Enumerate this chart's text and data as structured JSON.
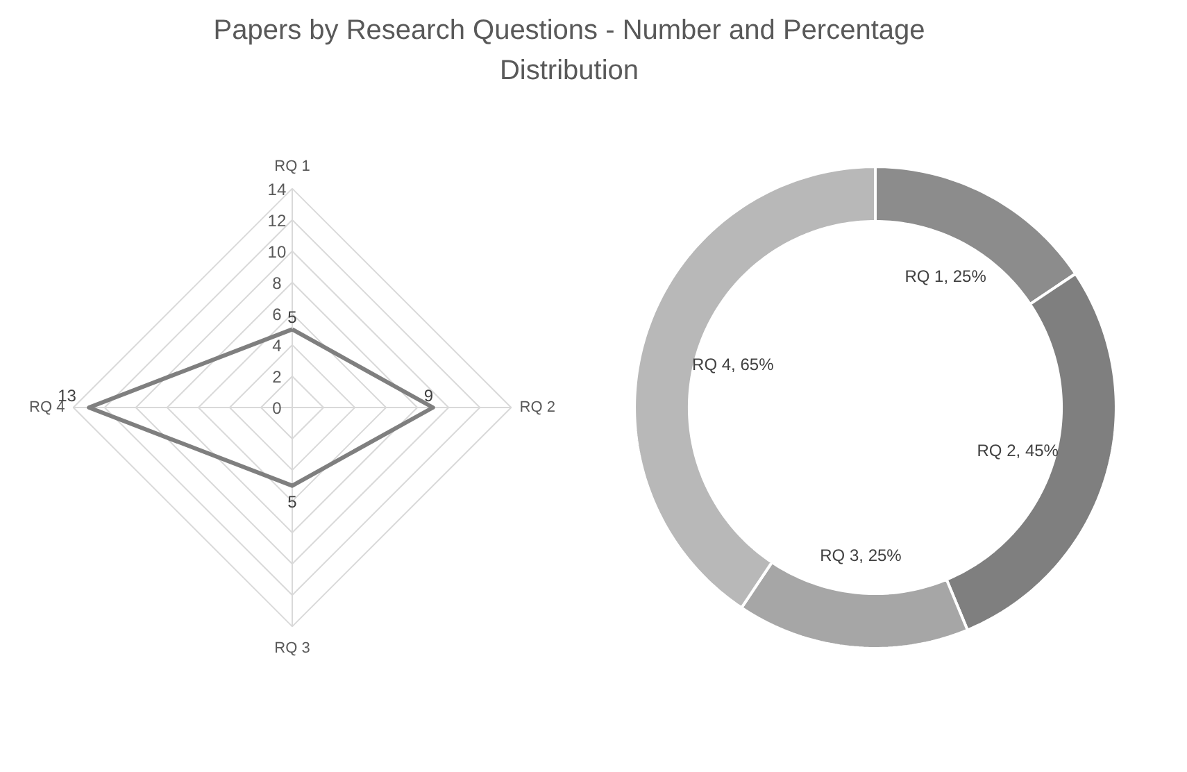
{
  "chart_data": [
    {
      "type": "radar",
      "title": "Papers by Research Questions - Number and Percentage Distribution",
      "categories": [
        "RQ 1",
        "RQ 2",
        "RQ 3",
        "RQ 4"
      ],
      "series": [
        {
          "color": "#7f7f7f",
          "values": [
            5,
            9,
            5,
            13
          ]
        }
      ],
      "ylim": [
        0,
        14
      ],
      "yticks": [
        0,
        2,
        4,
        6,
        8,
        10,
        12,
        14
      ],
      "grid": true,
      "data_labels": true
    },
    {
      "type": "donut",
      "categories": [
        "RQ 1",
        "RQ 2",
        "RQ 3",
        "RQ 4"
      ],
      "values": [
        25,
        45,
        25,
        65
      ],
      "colors": [
        "#8c8c8c",
        "#7f7f7f",
        "#a6a6a6",
        "#b8b8b8"
      ],
      "value_labels": [
        "25%",
        "45%",
        "25%",
        "65%"
      ]
    }
  ]
}
